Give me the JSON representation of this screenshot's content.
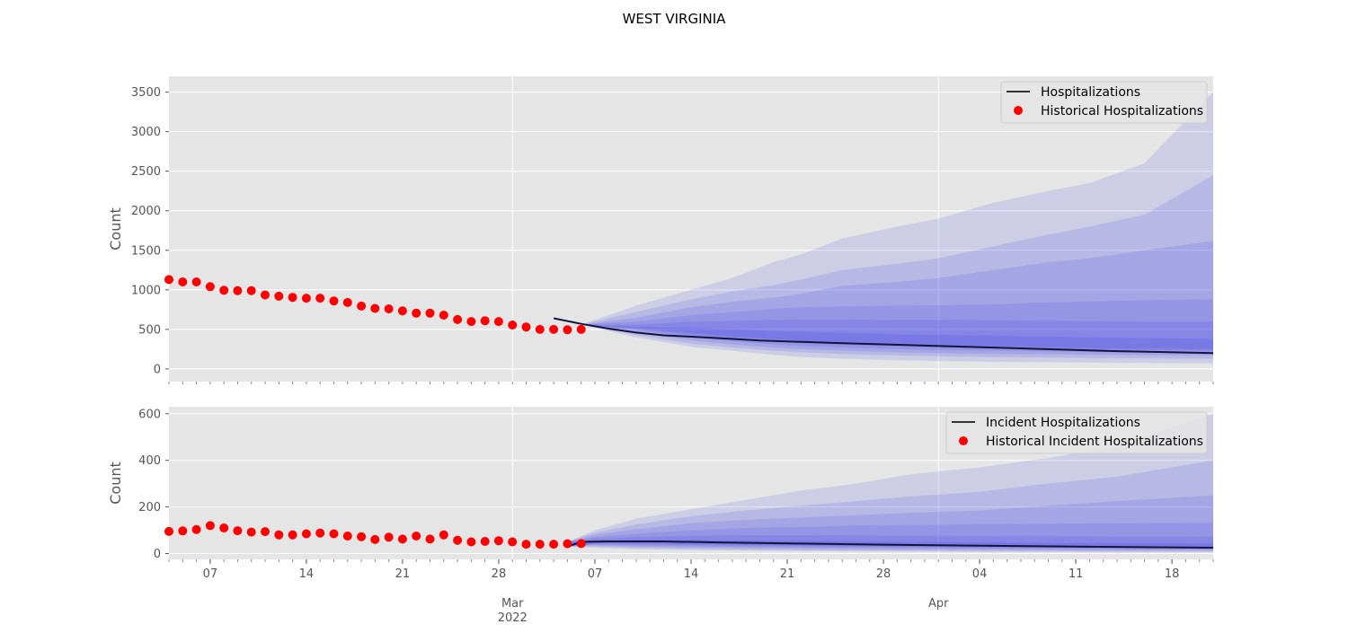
{
  "figure": {
    "title": "WEST VIRGINIA"
  },
  "colors": {
    "panel_bg": "#e5e5e5",
    "grid": "#ffffff",
    "band": "#2323e6",
    "median_line": "#14143c",
    "historical_points": "#ff0000",
    "tick_text": "#555555"
  },
  "x_axis": {
    "start": "2022-02-04",
    "end": "2022-04-21",
    "minor_ticks": "daily",
    "day_ticks": [
      {
        "date": "2022-02-07",
        "label": "07"
      },
      {
        "date": "2022-02-14",
        "label": "14"
      },
      {
        "date": "2022-02-21",
        "label": "21"
      },
      {
        "date": "2022-02-28",
        "label": "28"
      },
      {
        "date": "2022-03-07",
        "label": "07"
      },
      {
        "date": "2022-03-14",
        "label": "14"
      },
      {
        "date": "2022-03-21",
        "label": "21"
      },
      {
        "date": "2022-03-28",
        "label": "28"
      },
      {
        "date": "2022-04-04",
        "label": "04"
      },
      {
        "date": "2022-04-11",
        "label": "11"
      },
      {
        "date": "2022-04-18",
        "label": "18"
      }
    ],
    "month_ticks": [
      {
        "date": "2022-03-01",
        "label": "Mar",
        "sublabel": "2022"
      },
      {
        "date": "2022-04-01",
        "label": "Apr",
        "sublabel": ""
      }
    ]
  },
  "chart_data": [
    {
      "type": "line",
      "ylabel": "Count",
      "ylim": [
        -160,
        3700
      ],
      "yticks": [
        0,
        500,
        1000,
        1500,
        2000,
        2500,
        3000,
        3500
      ],
      "grid": true,
      "legend_placement": "top-right",
      "series": [
        {
          "name": "Historical Hospitalizations",
          "kind": "scatter",
          "x": [
            "2022-02-04",
            "2022-02-05",
            "2022-02-06",
            "2022-02-07",
            "2022-02-08",
            "2022-02-09",
            "2022-02-10",
            "2022-02-11",
            "2022-02-12",
            "2022-02-13",
            "2022-02-14",
            "2022-02-15",
            "2022-02-16",
            "2022-02-17",
            "2022-02-18",
            "2022-02-19",
            "2022-02-20",
            "2022-02-21",
            "2022-02-22",
            "2022-02-23",
            "2022-02-24",
            "2022-02-25",
            "2022-02-26",
            "2022-02-27",
            "2022-02-28",
            "2022-03-01",
            "2022-03-02",
            "2022-03-03",
            "2022-03-04",
            "2022-03-05",
            "2022-03-06"
          ],
          "y": [
            1130,
            1100,
            1100,
            1040,
            995,
            990,
            990,
            935,
            920,
            905,
            895,
            895,
            860,
            840,
            795,
            765,
            760,
            735,
            705,
            705,
            680,
            625,
            600,
            610,
            600,
            555,
            530,
            500,
            500,
            495,
            500
          ]
        },
        {
          "name": "Hospitalizations",
          "kind": "line",
          "x": [
            "2022-03-04",
            "2022-03-06",
            "2022-03-08",
            "2022-03-10",
            "2022-03-12",
            "2022-03-15",
            "2022-03-19",
            "2022-03-24",
            "2022-03-31",
            "2022-04-07",
            "2022-04-14",
            "2022-04-21"
          ],
          "y": [
            640,
            570,
            510,
            460,
            425,
            400,
            360,
            330,
            295,
            260,
            225,
            200
          ]
        }
      ],
      "quantile_bands": {
        "x": [
          "2022-03-06",
          "2022-03-10",
          "2022-03-14",
          "2022-03-17",
          "2022-03-20",
          "2022-03-22",
          "2022-03-25",
          "2022-03-29",
          "2022-04-01",
          "2022-04-05",
          "2022-04-09",
          "2022-04-12",
          "2022-04-16",
          "2022-04-21"
        ],
        "bands": [
          {
            "low": [
              560,
              400,
              280,
              230,
              180,
              150,
              130,
              110,
              100,
              90,
              85,
              80,
              75,
              70
            ],
            "high": [
              560,
              800,
              1000,
              1150,
              1350,
              1450,
              1650,
              1800,
              1900,
              2100,
              2250,
              2350,
              2600,
              3500
            ]
          },
          {
            "low": [
              560,
              430,
              320,
              270,
              230,
              210,
              190,
              170,
              160,
              150,
              145,
              140,
              135,
              130
            ],
            "high": [
              560,
              720,
              880,
              980,
              1060,
              1130,
              1250,
              1330,
              1400,
              1550,
              1700,
              1800,
              1950,
              2450
            ]
          },
          {
            "low": [
              560,
              460,
              360,
              310,
              270,
              250,
              230,
              210,
              200,
              190,
              185,
              180,
              175,
              170
            ],
            "high": [
              560,
              650,
              780,
              850,
              900,
              950,
              1050,
              1100,
              1150,
              1250,
              1350,
              1400,
              1500,
              1620
            ]
          },
          {
            "low": [
              560,
              490,
              400,
              350,
              310,
              290,
              270,
              250,
              240,
              230,
              220,
              215,
              210,
              205
            ],
            "high": [
              560,
              600,
              680,
              720,
              760,
              780,
              790,
              800,
              805,
              820,
              840,
              855,
              870,
              880
            ]
          },
          {
            "low": [
              560,
              505,
              430,
              385,
              345,
              325,
              305,
              285,
              270,
              260,
              250,
              240,
              235,
              230
            ],
            "high": [
              560,
              560,
              600,
              610,
              620,
              625,
              625,
              620,
              620,
              615,
              610,
              605,
              600,
              600
            ]
          },
          {
            "low": [
              560,
              515,
              455,
              410,
              375,
              355,
              335,
              315,
              300,
              285,
              275,
              265,
              255,
              250
            ],
            "high": [
              560,
              530,
              520,
              500,
              480,
              470,
              455,
              440,
              430,
              420,
              410,
              400,
              390,
              380
            ]
          }
        ]
      }
    },
    {
      "type": "line",
      "ylabel": "Count",
      "ylim": [
        -25,
        630
      ],
      "yticks": [
        0,
        200,
        400,
        600
      ],
      "grid": true,
      "legend_placement": "top-right",
      "series": [
        {
          "name": "Historical Incident Hospitalizations",
          "kind": "scatter",
          "x": [
            "2022-02-04",
            "2022-02-05",
            "2022-02-06",
            "2022-02-07",
            "2022-02-08",
            "2022-02-09",
            "2022-02-10",
            "2022-02-11",
            "2022-02-12",
            "2022-02-13",
            "2022-02-14",
            "2022-02-15",
            "2022-02-16",
            "2022-02-17",
            "2022-02-18",
            "2022-02-19",
            "2022-02-20",
            "2022-02-21",
            "2022-02-22",
            "2022-02-23",
            "2022-02-24",
            "2022-02-25",
            "2022-02-26",
            "2022-02-27",
            "2022-02-28",
            "2022-03-01",
            "2022-03-02",
            "2022-03-03",
            "2022-03-04",
            "2022-03-05",
            "2022-03-06"
          ],
          "y": [
            95,
            97,
            103,
            120,
            110,
            98,
            92,
            94,
            80,
            80,
            85,
            88,
            85,
            75,
            72,
            60,
            70,
            62,
            75,
            62,
            80,
            57,
            50,
            52,
            55,
            50,
            40,
            40,
            40,
            42,
            43
          ]
        },
        {
          "name": "Incident Hospitalizations",
          "kind": "line",
          "x": [
            "2022-03-05",
            "2022-03-06",
            "2022-03-08",
            "2022-03-12",
            "2022-03-16",
            "2022-03-22",
            "2022-03-28",
            "2022-04-04",
            "2022-04-11",
            "2022-04-21"
          ],
          "y": [
            30,
            50,
            52,
            52,
            48,
            43,
            38,
            34,
            30,
            25
          ]
        }
      ],
      "quantile_bands": {
        "x": [
          "2022-03-05",
          "2022-03-07",
          "2022-03-10",
          "2022-03-14",
          "2022-03-18",
          "2022-03-22",
          "2022-03-26",
          "2022-03-30",
          "2022-04-04",
          "2022-04-09",
          "2022-04-14",
          "2022-04-21"
        ],
        "bands": [
          {
            "low": [
              30,
              25,
              18,
              14,
              12,
              10,
              9,
              8,
              7,
              6,
              5,
              5
            ],
            "high": [
              50,
              100,
              150,
              190,
              230,
              270,
              300,
              340,
              370,
              410,
              460,
              600
            ]
          },
          {
            "low": [
              30,
              30,
              24,
              20,
              17,
              15,
              13,
              12,
              11,
              10,
              9,
              8
            ],
            "high": [
              50,
              90,
              125,
              160,
              185,
              205,
              225,
              245,
              265,
              300,
              330,
              400
            ]
          },
          {
            "low": [
              30,
              35,
              30,
              26,
              23,
              21,
              19,
              17,
              16,
              15,
              14,
              13
            ],
            "high": [
              50,
              80,
              105,
              130,
              145,
              155,
              165,
              175,
              185,
              205,
              225,
              250
            ]
          },
          {
            "low": [
              30,
              38,
              35,
              32,
              29,
              27,
              25,
              23,
              21,
              20,
              19,
              18
            ],
            "high": [
              50,
              70,
              85,
              100,
              110,
              115,
              120,
              123,
              126,
              128,
              130,
              132
            ]
          },
          {
            "low": [
              30,
              42,
              40,
              37,
              34,
              32,
              30,
              28,
              26,
              25,
              24,
              22
            ],
            "high": [
              50,
              62,
              70,
              76,
              78,
              78,
              77,
              76,
              75,
              74,
              73,
              72
            ]
          },
          {
            "low": [
              30,
              45,
              44,
              41,
              38,
              36,
              34,
              32,
              30,
              29,
              28,
              26
            ],
            "high": [
              50,
              56,
              58,
              58,
              56,
              54,
              52,
              50,
              48,
              46,
              45,
              44
            ]
          }
        ]
      }
    }
  ]
}
